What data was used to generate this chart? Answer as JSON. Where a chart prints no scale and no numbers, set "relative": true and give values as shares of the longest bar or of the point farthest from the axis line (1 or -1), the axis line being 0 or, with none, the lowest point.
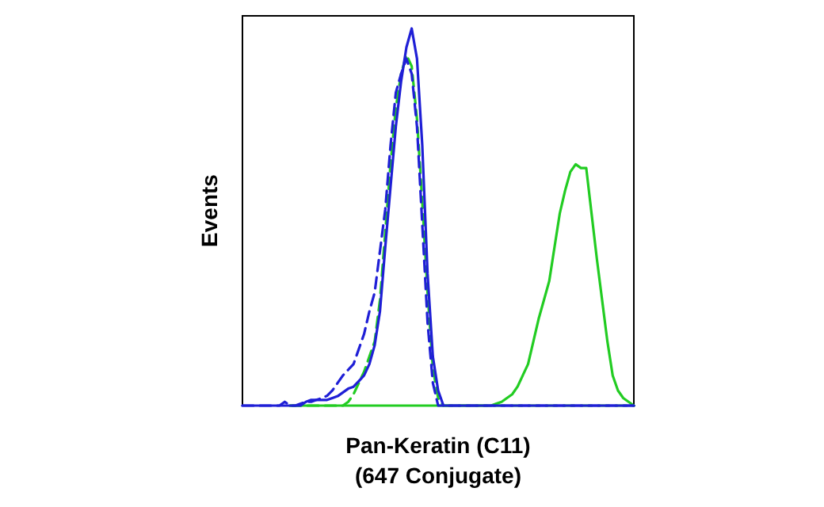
{
  "chart_data": {
    "type": "line",
    "relative": true,
    "xlabel": "Pan-Keratin (C11)\n(647 Conjugate)",
    "ylabel": "Events",
    "categories": [
      null,
      null,
      null,
      null,
      null,
      null,
      null,
      null,
      null,
      null,
      null,
      null,
      null,
      null,
      null,
      null,
      null,
      null,
      null,
      null,
      null,
      null,
      null,
      null,
      null,
      null,
      null,
      null,
      null,
      null,
      null,
      null,
      null,
      null,
      null,
      null,
      null,
      null,
      null,
      null,
      null,
      null,
      null,
      null,
      null,
      null,
      null,
      null,
      null,
      null,
      null,
      null,
      null,
      null,
      null,
      null,
      null,
      null,
      null,
      null,
      null,
      null,
      null,
      null,
      null,
      null,
      null,
      null,
      null,
      null,
      null,
      null,
      null,
      null,
      null
    ],
    "series": [
      {
        "color": "#22cc22",
        "line_style": "solid",
        "values": [
          null,
          null,
          null,
          null,
          null,
          null,
          null,
          null,
          null,
          0,
          0,
          0,
          0,
          0,
          0,
          0,
          0,
          0,
          0,
          0,
          0,
          0,
          0,
          0,
          0,
          0,
          0,
          0,
          0,
          0,
          0,
          0,
          0,
          0,
          0,
          0,
          0,
          0,
          0,
          0,
          0,
          0,
          0,
          0,
          0,
          0,
          0,
          0,
          0.005,
          0.01,
          0.02,
          0.03,
          0.05,
          0.08,
          0.11,
          0.17,
          0.23,
          0.28,
          0.33,
          0.42,
          0.51,
          0.57,
          0.62,
          0.64,
          0.63,
          0.63,
          0.51,
          0.39,
          0.28,
          0.17,
          0.08,
          0.04,
          0.02,
          0.01,
          0
        ]
      },
      {
        "color": "#22cc22",
        "line_style": "dashed",
        "values": [
          null,
          null,
          null,
          null,
          null,
          null,
          null,
          null,
          null,
          0,
          0,
          0,
          0,
          0,
          0,
          0,
          0,
          0,
          0,
          0,
          0.01,
          0.03,
          0.06,
          0.09,
          0.13,
          0.17,
          0.28,
          0.46,
          0.64,
          0.79,
          0.88,
          0.93,
          0.9,
          0.76,
          0.54,
          0.3,
          0.1,
          0.02,
          0,
          0,
          0,
          0,
          0,
          0,
          0,
          0,
          0,
          0,
          0,
          0,
          0,
          0,
          0,
          0,
          0,
          0,
          0,
          0,
          0,
          0,
          0,
          0,
          0,
          0,
          0,
          0,
          0,
          0,
          0,
          0,
          0,
          0,
          0,
          0,
          0
        ]
      },
      {
        "color": "#1f1fd6",
        "line_style": "dashed",
        "values": [
          0,
          0,
          0,
          0,
          0,
          0,
          0,
          0,
          0.01,
          0,
          0,
          0.005,
          0.01,
          0.01,
          0.015,
          0.02,
          0.026,
          0.04,
          0.06,
          0.08,
          0.095,
          0.11,
          0.15,
          0.19,
          0.25,
          0.3,
          0.41,
          0.52,
          0.69,
          0.83,
          0.88,
          0.92,
          0.88,
          0.74,
          0.48,
          0.22,
          0.06,
          0,
          0,
          0,
          0,
          0,
          0,
          0,
          0,
          0,
          0,
          0,
          0,
          0,
          0,
          0,
          0,
          0,
          0,
          0,
          0,
          0,
          0,
          0,
          0,
          0,
          0,
          0,
          0,
          0,
          0,
          0,
          0,
          0,
          0,
          0,
          0,
          0,
          0
        ]
      },
      {
        "color": "#1f1fd6",
        "line_style": "solid",
        "values": [
          0,
          0,
          0,
          0,
          0,
          0,
          0,
          0,
          0,
          0,
          0,
          0,
          0.01,
          0.015,
          0.015,
          0.015,
          0.015,
          0.02,
          0.025,
          0.035,
          0.045,
          0.05,
          0.065,
          0.08,
          0.11,
          0.16,
          0.25,
          0.42,
          0.58,
          0.74,
          0.86,
          0.95,
          1,
          0.92,
          0.69,
          0.35,
          0.13,
          0.04,
          0,
          0,
          0,
          0,
          0,
          0,
          0,
          0,
          0,
          0,
          0,
          0,
          0,
          0,
          0,
          0,
          0,
          0,
          0,
          0,
          0,
          0,
          0,
          0,
          0,
          0,
          0,
          0,
          0,
          0,
          0,
          0,
          0,
          0,
          0,
          0,
          0
        ]
      }
    ]
  }
}
